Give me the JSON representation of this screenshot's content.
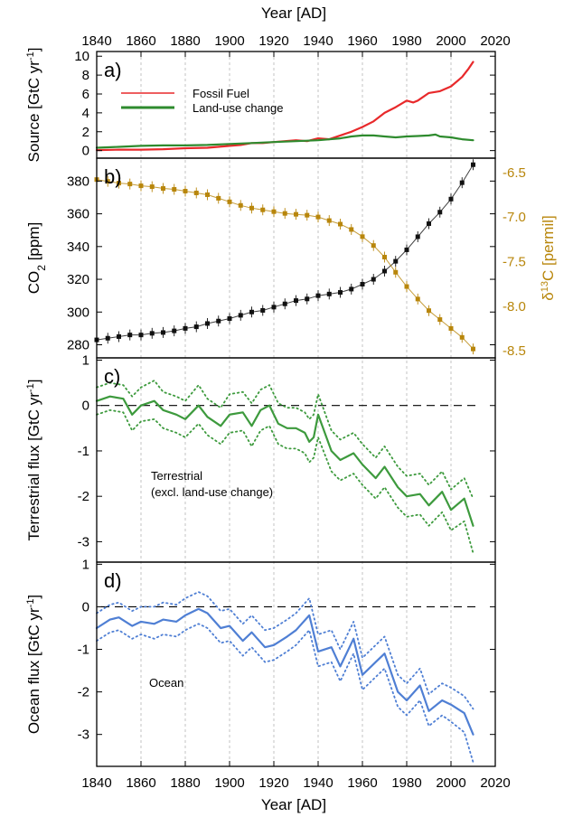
{
  "chart_data": [
    {
      "panel_label": "a)",
      "type": "line",
      "title": "",
      "xlabel": "Year [AD]",
      "ylabel": "Source [GtC yr-1]",
      "xlim": [
        1840,
        2020
      ],
      "ylim": [
        -0.8,
        10.5
      ],
      "xticks": [
        "1840",
        "1860",
        "1880",
        "1900",
        "1920",
        "1940",
        "1960",
        "1980",
        "2000",
        "2020"
      ],
      "yticks": [
        "0",
        "2",
        "4",
        "6",
        "8",
        "10"
      ],
      "legend_position": "top-left",
      "series": [
        {
          "name": "Fossil Fuel",
          "color": "#e8292b",
          "x": [
            1840,
            1850,
            1860,
            1870,
            1880,
            1890,
            1900,
            1905,
            1910,
            1915,
            1920,
            1925,
            1930,
            1935,
            1940,
            1945,
            1950,
            1955,
            1960,
            1965,
            1970,
            1975,
            1980,
            1983,
            1985,
            1990,
            1995,
            2000,
            2005,
            2008,
            2010
          ],
          "y": [
            0.05,
            0.1,
            0.1,
            0.15,
            0.25,
            0.3,
            0.5,
            0.6,
            0.8,
            0.8,
            0.9,
            1.0,
            1.1,
            1.0,
            1.3,
            1.2,
            1.6,
            2.0,
            2.5,
            3.1,
            4.0,
            4.6,
            5.3,
            5.1,
            5.3,
            6.1,
            6.3,
            6.8,
            7.8,
            8.7,
            9.4
          ]
        },
        {
          "name": "Land-use change",
          "color": "#2e8b2e",
          "x": [
            1840,
            1850,
            1860,
            1870,
            1880,
            1890,
            1900,
            1910,
            1920,
            1930,
            1940,
            1950,
            1955,
            1960,
            1965,
            1970,
            1975,
            1980,
            1985,
            1990,
            1993,
            1995,
            2000,
            2005,
            2010
          ],
          "y": [
            0.3,
            0.4,
            0.5,
            0.55,
            0.55,
            0.6,
            0.7,
            0.8,
            0.9,
            1.0,
            1.1,
            1.3,
            1.5,
            1.6,
            1.6,
            1.5,
            1.4,
            1.5,
            1.55,
            1.6,
            1.7,
            1.5,
            1.4,
            1.2,
            1.1
          ]
        }
      ]
    },
    {
      "panel_label": "b)",
      "type": "scatter",
      "title": "",
      "xlabel": "",
      "ylabel": "CO2 [ppm]",
      "ylabel_right": "δ13C [permil]",
      "xlim": [
        1840,
        2020
      ],
      "ylim": [
        272,
        394
      ],
      "ylim_right": [
        -8.58,
        -6.34
      ],
      "yticks": [
        "280",
        "300",
        "320",
        "340",
        "360",
        "380"
      ],
      "yticks_right": [
        "-6.5",
        "-7.0",
        "-7.5",
        "-8.0",
        "-8.5"
      ],
      "series": [
        {
          "name": "CO2",
          "axis": "left",
          "color": "#111111",
          "x": [
            1840,
            1845,
            1850,
            1855,
            1860,
            1865,
            1870,
            1875,
            1880,
            1885,
            1890,
            1895,
            1900,
            1905,
            1910,
            1915,
            1920,
            1925,
            1930,
            1935,
            1940,
            1945,
            1950,
            1955,
            1960,
            1965,
            1970,
            1975,
            1980,
            1985,
            1990,
            1995,
            2000,
            2005,
            2010
          ],
          "y": [
            283,
            284,
            285,
            286,
            286,
            287,
            287.5,
            288.5,
            290,
            291,
            293,
            294.5,
            296,
            298,
            300,
            301,
            303,
            305,
            307,
            308,
            310,
            311,
            312,
            314,
            317,
            320,
            325,
            331,
            338,
            346,
            354,
            361,
            369,
            379,
            390
          ]
        },
        {
          "name": "δ13C",
          "axis": "right",
          "color": "#b8860b",
          "x": [
            1840,
            1845,
            1850,
            1855,
            1860,
            1865,
            1870,
            1875,
            1880,
            1885,
            1890,
            1895,
            1900,
            1905,
            1910,
            1915,
            1920,
            1925,
            1930,
            1935,
            1940,
            1945,
            1950,
            1955,
            1960,
            1965,
            1970,
            1975,
            1980,
            1985,
            1990,
            1995,
            2000,
            2005,
            2010
          ],
          "y": [
            -6.58,
            -6.6,
            -6.62,
            -6.63,
            -6.65,
            -6.66,
            -6.68,
            -6.69,
            -6.71,
            -6.73,
            -6.75,
            -6.79,
            -6.83,
            -6.87,
            -6.9,
            -6.92,
            -6.94,
            -6.96,
            -6.97,
            -6.98,
            -7.0,
            -7.04,
            -7.08,
            -7.14,
            -7.22,
            -7.32,
            -7.45,
            -7.62,
            -7.78,
            -7.92,
            -8.05,
            -8.15,
            -8.25,
            -8.35,
            -8.48
          ]
        }
      ]
    },
    {
      "panel_label": "c)",
      "type": "line",
      "title": "",
      "xlabel": "",
      "ylabel": "Terrestrial flux [GtC yr-1]",
      "xlim": [
        1840,
        2020
      ],
      "ylim": [
        -3.45,
        1.05
      ],
      "yticks": [
        "1",
        "0",
        "-1",
        "-2",
        "-3"
      ],
      "annotation": [
        "Terrestrial",
        "(excl. land-use change)"
      ],
      "reference_line": 0,
      "series": [
        {
          "name": "",
          "color": "#3d9a3d",
          "style": "solid",
          "x": [
            1840,
            1846,
            1852,
            1856,
            1860,
            1866,
            1870,
            1876,
            1880,
            1886,
            1890,
            1896,
            1900,
            1906,
            1910,
            1914,
            1918,
            1922,
            1926,
            1930,
            1934,
            1936,
            1938,
            1940,
            1946,
            1950,
            1956,
            1960,
            1966,
            1970,
            1976,
            1980,
            1986,
            1990,
            1996,
            2000,
            2006,
            2010
          ],
          "y": [
            0.1,
            0.2,
            0.15,
            -0.2,
            0.0,
            0.1,
            -0.1,
            -0.2,
            -0.3,
            0.0,
            -0.25,
            -0.45,
            -0.2,
            -0.15,
            -0.45,
            -0.1,
            0.0,
            -0.4,
            -0.5,
            -0.5,
            -0.6,
            -0.8,
            -0.7,
            -0.2,
            -1.0,
            -1.2,
            -1.05,
            -1.3,
            -1.6,
            -1.35,
            -1.8,
            -2.0,
            -1.95,
            -2.2,
            -1.9,
            -2.3,
            -2.05,
            -2.65
          ]
        },
        {
          "name": "",
          "color": "#3d9a3d",
          "style": "dotted",
          "x": [
            1840,
            1846,
            1852,
            1856,
            1860,
            1866,
            1870,
            1876,
            1880,
            1886,
            1890,
            1896,
            1900,
            1906,
            1910,
            1914,
            1918,
            1922,
            1926,
            1930,
            1934,
            1936,
            1938,
            1940,
            1946,
            1950,
            1956,
            1960,
            1966,
            1970,
            1976,
            1980,
            1986,
            1990,
            1996,
            2000,
            2006,
            2010
          ],
          "y": [
            0.4,
            0.5,
            0.45,
            0.2,
            0.4,
            0.55,
            0.3,
            0.2,
            0.1,
            0.45,
            0.15,
            -0.05,
            0.25,
            0.3,
            0.05,
            0.35,
            0.45,
            0.05,
            -0.05,
            -0.05,
            -0.15,
            -0.3,
            -0.2,
            0.25,
            -0.55,
            -0.75,
            -0.6,
            -0.85,
            -1.15,
            -0.9,
            -1.35,
            -1.55,
            -1.5,
            -1.75,
            -1.45,
            -1.85,
            -1.6,
            -2.05
          ]
        },
        {
          "name": "",
          "color": "#3d9a3d",
          "style": "dotted",
          "x": [
            1840,
            1846,
            1852,
            1856,
            1860,
            1866,
            1870,
            1876,
            1880,
            1886,
            1890,
            1896,
            1900,
            1906,
            1910,
            1914,
            1918,
            1922,
            1926,
            1930,
            1934,
            1936,
            1938,
            1940,
            1946,
            1950,
            1956,
            1960,
            1966,
            1970,
            1976,
            1980,
            1986,
            1990,
            1996,
            2000,
            2006,
            2010
          ],
          "y": [
            -0.2,
            -0.1,
            -0.15,
            -0.55,
            -0.35,
            -0.3,
            -0.5,
            -0.6,
            -0.7,
            -0.4,
            -0.65,
            -0.85,
            -0.6,
            -0.55,
            -0.9,
            -0.55,
            -0.45,
            -0.85,
            -0.95,
            -0.95,
            -1.05,
            -1.25,
            -1.15,
            -0.7,
            -1.45,
            -1.65,
            -1.5,
            -1.75,
            -2.05,
            -1.8,
            -2.25,
            -2.45,
            -2.4,
            -2.65,
            -2.35,
            -2.75,
            -2.55,
            -3.25
          ]
        }
      ]
    },
    {
      "panel_label": "d)",
      "type": "line",
      "title": "",
      "xlabel": "Year [AD]",
      "ylabel": "Ocean flux [GtC yr-1]",
      "xlim": [
        1840,
        2020
      ],
      "ylim": [
        -3.75,
        1.05
      ],
      "yticks": [
        "1",
        "0",
        "-1",
        "-2",
        "-3"
      ],
      "annotation": [
        "Ocean"
      ],
      "reference_line": 0,
      "series": [
        {
          "name": "",
          "color": "#4f7fd4",
          "style": "solid",
          "x": [
            1840,
            1846,
            1850,
            1856,
            1860,
            1866,
            1870,
            1876,
            1880,
            1886,
            1890,
            1896,
            1900,
            1906,
            1910,
            1916,
            1920,
            1926,
            1930,
            1936,
            1940,
            1946,
            1950,
            1956,
            1960,
            1966,
            1970,
            1976,
            1980,
            1986,
            1990,
            1996,
            2000,
            2006,
            2010
          ],
          "y": [
            -0.5,
            -0.3,
            -0.25,
            -0.45,
            -0.35,
            -0.4,
            -0.3,
            -0.35,
            -0.2,
            -0.05,
            -0.15,
            -0.5,
            -0.45,
            -0.8,
            -0.6,
            -0.95,
            -0.9,
            -0.7,
            -0.55,
            -0.2,
            -1.05,
            -0.95,
            -1.4,
            -0.75,
            -1.6,
            -1.3,
            -1.1,
            -2.0,
            -2.2,
            -1.85,
            -2.45,
            -2.2,
            -2.3,
            -2.5,
            -3.0
          ]
        },
        {
          "name": "",
          "color": "#4f7fd4",
          "style": "dotted",
          "x": [
            1840,
            1846,
            1850,
            1856,
            1860,
            1866,
            1870,
            1876,
            1880,
            1886,
            1890,
            1896,
            1900,
            1906,
            1910,
            1916,
            1920,
            1926,
            1930,
            1936,
            1940,
            1946,
            1950,
            1956,
            1960,
            1966,
            1970,
            1976,
            1980,
            1986,
            1990,
            1996,
            2000,
            2006,
            2010
          ],
          "y": [
            -0.15,
            0.05,
            0.1,
            -0.1,
            0.0,
            0.0,
            0.1,
            0.05,
            0.2,
            0.35,
            0.25,
            -0.1,
            -0.05,
            -0.4,
            -0.2,
            -0.55,
            -0.5,
            -0.3,
            -0.15,
            0.2,
            -0.65,
            -0.55,
            -1.0,
            -0.35,
            -1.2,
            -0.9,
            -0.7,
            -1.6,
            -1.8,
            -1.45,
            -2.05,
            -1.8,
            -1.9,
            -2.1,
            -2.4
          ]
        },
        {
          "name": "",
          "color": "#4f7fd4",
          "style": "dotted",
          "x": [
            1840,
            1846,
            1850,
            1856,
            1860,
            1866,
            1870,
            1876,
            1880,
            1886,
            1890,
            1896,
            1900,
            1906,
            1910,
            1916,
            1920,
            1926,
            1930,
            1936,
            1940,
            1946,
            1950,
            1956,
            1960,
            1966,
            1970,
            1976,
            1980,
            1986,
            1990,
            1996,
            2000,
            2006,
            2010
          ],
          "y": [
            -0.8,
            -0.6,
            -0.55,
            -0.75,
            -0.65,
            -0.75,
            -0.65,
            -0.7,
            -0.55,
            -0.4,
            -0.5,
            -0.85,
            -0.8,
            -1.15,
            -0.95,
            -1.3,
            -1.25,
            -1.05,
            -0.9,
            -0.55,
            -1.4,
            -1.3,
            -1.75,
            -1.1,
            -1.95,
            -1.65,
            -1.45,
            -2.35,
            -2.55,
            -2.2,
            -2.8,
            -2.55,
            -2.7,
            -2.95,
            -3.65
          ]
        }
      ]
    }
  ]
}
